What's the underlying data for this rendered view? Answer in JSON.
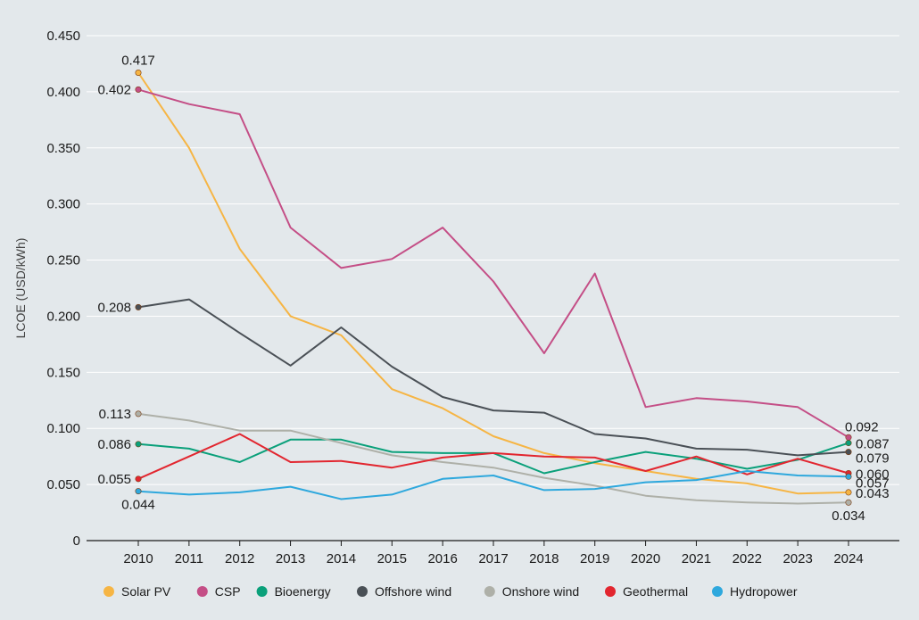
{
  "chart_data": {
    "type": "line",
    "ylabel": "LCOE (USD/kWh)",
    "ylim": [
      0,
      0.45
    ],
    "yticks": [
      0,
      0.05,
      0.1,
      0.15,
      0.2,
      0.25,
      0.3,
      0.35,
      0.4,
      0.45
    ],
    "ytick_labels": [
      "0",
      "0.050",
      "0.100",
      "0.150",
      "0.200",
      "0.250",
      "0.300",
      "0.350",
      "0.400",
      "0.450"
    ],
    "categories": [
      "2010",
      "2011",
      "2012",
      "2013",
      "2014",
      "2015",
      "2016",
      "2017",
      "2018",
      "2019",
      "2020",
      "2021",
      "2022",
      "2023",
      "2024"
    ],
    "grid": "horizontal",
    "legend_position": "bottom",
    "series": [
      {
        "name": "Solar PV",
        "color": "#f6b544",
        "values": [
          0.417,
          0.35,
          0.26,
          0.2,
          0.183,
          0.135,
          0.118,
          0.093,
          0.078,
          0.069,
          0.062,
          0.055,
          0.051,
          0.042,
          0.043
        ]
      },
      {
        "name": "CSP",
        "color": "#c44e86",
        "values": [
          0.402,
          0.389,
          0.38,
          0.279,
          0.243,
          0.251,
          0.279,
          0.231,
          0.167,
          0.238,
          0.119,
          0.127,
          0.124,
          0.119,
          0.092
        ]
      },
      {
        "name": "Bioenergy",
        "color": "#0aa07a",
        "values": [
          0.086,
          0.082,
          0.07,
          0.09,
          0.09,
          0.079,
          0.078,
          0.078,
          0.06,
          0.07,
          0.079,
          0.073,
          0.064,
          0.072,
          0.087
        ]
      },
      {
        "name": "Offshore wind",
        "color": "#4a5056",
        "values": [
          0.208,
          0.215,
          0.185,
          0.156,
          0.19,
          0.155,
          0.128,
          0.116,
          0.114,
          0.095,
          0.091,
          0.082,
          0.081,
          0.076,
          0.079
        ]
      },
      {
        "name": "Onshore wind",
        "color": "#aeb0a8",
        "values": [
          0.113,
          0.107,
          0.098,
          0.098,
          0.087,
          0.076,
          0.07,
          0.065,
          0.056,
          0.049,
          0.04,
          0.036,
          0.034,
          0.033,
          0.034
        ]
      },
      {
        "name": "Geothermal",
        "color": "#e2262f",
        "values": [
          0.055,
          0.075,
          0.095,
          0.07,
          0.071,
          0.065,
          0.074,
          0.078,
          0.075,
          0.074,
          0.062,
          0.075,
          0.059,
          0.073,
          0.06
        ]
      },
      {
        "name": "Hydropower",
        "color": "#2ea8dd",
        "values": [
          0.044,
          0.041,
          0.043,
          0.048,
          0.037,
          0.041,
          0.055,
          0.058,
          0.045,
          0.046,
          0.052,
          0.054,
          0.062,
          0.058,
          0.057
        ]
      }
    ],
    "annotations": [
      {
        "text": "0.417",
        "series": 0,
        "index": 0,
        "anchor": "above"
      },
      {
        "text": "0.402",
        "series": 1,
        "index": 0,
        "anchor": "left"
      },
      {
        "text": "0.208",
        "series": 3,
        "index": 0,
        "anchor": "left"
      },
      {
        "text": "0.113",
        "series": 4,
        "index": 0,
        "anchor": "left"
      },
      {
        "text": "0.086",
        "series": 2,
        "index": 0,
        "anchor": "left"
      },
      {
        "text": "0.055",
        "series": 5,
        "index": 0,
        "anchor": "left"
      },
      {
        "text": "0.044",
        "series": 6,
        "index": 0,
        "anchor": "below"
      },
      {
        "text": "0.092",
        "series": 1,
        "index": 14,
        "anchor": "right-above"
      },
      {
        "text": "0.087",
        "series": 2,
        "index": 14,
        "anchor": "right"
      },
      {
        "text": "0.079",
        "series": 3,
        "index": 14,
        "anchor": "right-below"
      },
      {
        "text": "0.060",
        "series": 5,
        "index": 14,
        "anchor": "right"
      },
      {
        "text": "0.057",
        "series": 6,
        "index": 14,
        "anchor": "right-below"
      },
      {
        "text": "0.043",
        "series": 0,
        "index": 14,
        "anchor": "right"
      },
      {
        "text": "0.034",
        "series": 4,
        "index": 14,
        "anchor": "below"
      }
    ]
  }
}
